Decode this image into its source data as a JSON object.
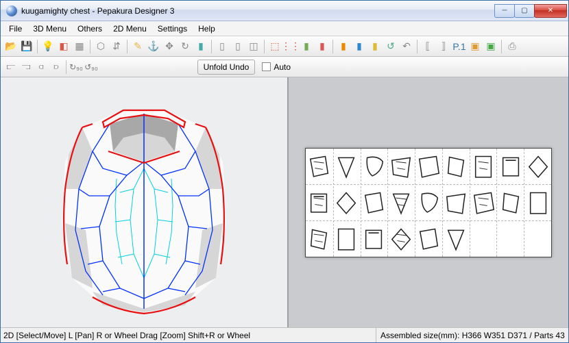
{
  "window": {
    "title": "kuugamighty chest - Pepakura Designer 3",
    "buttons": {
      "min": "─",
      "max": "▢",
      "close": "✕"
    }
  },
  "menu": {
    "items": [
      "File",
      "3D Menu",
      "Others",
      "2D Menu",
      "Settings",
      "Help"
    ]
  },
  "toolbar1": {
    "icons": [
      {
        "name": "open-icon",
        "glyph": "📂",
        "color": "#e9b24a"
      },
      {
        "name": "save-icon",
        "glyph": "💾",
        "color": "#4a6ea9"
      },
      {
        "name": "lightbulb-icon",
        "glyph": "💡",
        "color": "#f5c542",
        "sep_before": true
      },
      {
        "name": "color-cube-icon",
        "glyph": "◧",
        "color": "#d54"
      },
      {
        "name": "texture-icon",
        "glyph": "▦",
        "color": "#888"
      },
      {
        "name": "cube-icon",
        "glyph": "⬡",
        "color": "#888",
        "sep_before": true
      },
      {
        "name": "flip-icon",
        "glyph": "⇵",
        "color": "#888"
      },
      {
        "name": "pencil-icon",
        "glyph": "✎",
        "color": "#e9b24a",
        "sep_before": true
      },
      {
        "name": "anchor-icon",
        "glyph": "⚓",
        "color": "#888"
      },
      {
        "name": "arrows-icon",
        "glyph": "✥",
        "color": "#888"
      },
      {
        "name": "rotate-icon",
        "glyph": "↻",
        "color": "#888"
      },
      {
        "name": "paint-icon",
        "glyph": "▮",
        "color": "#4aa"
      },
      {
        "name": "layout1-icon",
        "glyph": "▯",
        "color": "#888",
        "sep_before": true
      },
      {
        "name": "layout2-icon",
        "glyph": "▯",
        "color": "#888"
      },
      {
        "name": "layout3-icon",
        "glyph": "◫",
        "color": "#888"
      },
      {
        "name": "marquee-icon",
        "glyph": "⬚",
        "color": "#d54",
        "sep_before": true
      },
      {
        "name": "dots-icon",
        "glyph": "⋮⋮",
        "color": "#c44"
      },
      {
        "name": "rainbow1-icon",
        "glyph": "▮",
        "color": "#7a5"
      },
      {
        "name": "rainbow2-icon",
        "glyph": "▮",
        "color": "#d55"
      },
      {
        "name": "orange-icon",
        "glyph": "▮",
        "color": "#e80",
        "sep_before": true
      },
      {
        "name": "blue-icon",
        "glyph": "▮",
        "color": "#38c"
      },
      {
        "name": "yellow2-icon",
        "glyph": "▮",
        "color": "#db3"
      },
      {
        "name": "refresh-icon",
        "glyph": "↺",
        "color": "#4a8"
      },
      {
        "name": "undo-icon",
        "glyph": "↶",
        "color": "#888"
      },
      {
        "name": "bracket1-icon",
        "glyph": "⟦",
        "color": "#888",
        "sep_before": true
      },
      {
        "name": "bracket2-icon",
        "glyph": "⟧",
        "color": "#888"
      },
      {
        "name": "p1-icon",
        "glyph": "P.1",
        "color": "#37a"
      },
      {
        "name": "disk-a-icon",
        "glyph": "▣",
        "color": "#d93"
      },
      {
        "name": "disk-b-icon",
        "glyph": "▣",
        "color": "#4a4"
      },
      {
        "name": "print-icon",
        "glyph": "⎙",
        "color": "#888",
        "sep_before": true
      }
    ]
  },
  "toolbar2": {
    "align_icons": [
      {
        "name": "align1-icon",
        "glyph": "⫍"
      },
      {
        "name": "align2-icon",
        "glyph": "⫎"
      },
      {
        "name": "align3-icon",
        "glyph": "⫏"
      },
      {
        "name": "align4-icon",
        "glyph": "⫐"
      },
      {
        "name": "rot90a-icon",
        "glyph": "↻₉₀",
        "sep_before": true
      },
      {
        "name": "rot90b-icon",
        "glyph": "↺₉₀"
      }
    ],
    "unfold_undo_label": "Unfold Undo",
    "auto_label": "Auto",
    "auto_checked": false
  },
  "status": {
    "left": "2D [Select/Move] L [Pan] R or Wheel Drag [Zoom] Shift+R or Wheel",
    "right": "Assembled size(mm): H366 W351 D371 / Parts 43"
  },
  "model3d": {
    "edge_color_red": "#e81010",
    "edge_color_blue": "#0030ff",
    "edge_color_cyan": "#00d0e0",
    "fill_light": "#fafafa",
    "fill_mid": "#d6d6d6",
    "fill_dark": "#a8a8a8",
    "bg": "#eceef0"
  },
  "unfold2d": {
    "sheet_bg": "#ffffff",
    "stroke": "#222222",
    "grid_cols": 9,
    "grid_rows": 3,
    "parts_count": 24
  }
}
